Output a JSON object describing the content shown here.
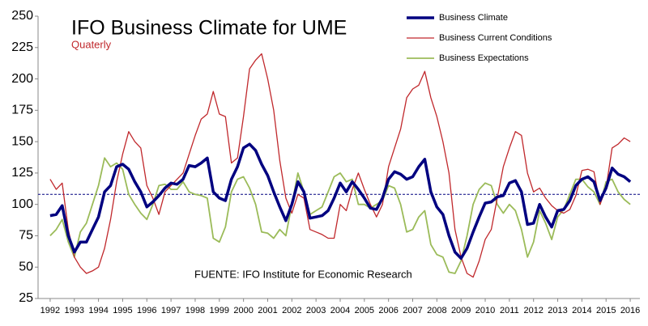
{
  "chart_data": {
    "type": "line",
    "title": "IFO Business Climate for UME",
    "subtitle": "Quaterly",
    "annotation": "FUENTE: IFO Institute for Economic Research",
    "x": [
      1992,
      1992.25,
      1992.5,
      1992.75,
      1993,
      1993.25,
      1993.5,
      1993.75,
      1994,
      1994.25,
      1994.5,
      1994.75,
      1995,
      1995.25,
      1995.5,
      1995.75,
      1996,
      1996.25,
      1996.5,
      1996.75,
      1997,
      1997.25,
      1997.5,
      1997.75,
      1998,
      1998.25,
      1998.5,
      1998.75,
      1999,
      1999.25,
      1999.5,
      1999.75,
      2000,
      2000.25,
      2000.5,
      2000.75,
      2001,
      2001.25,
      2001.5,
      2001.75,
      2002,
      2002.25,
      2002.5,
      2002.75,
      2003,
      2003.25,
      2003.5,
      2003.75,
      2004,
      2004.25,
      2004.5,
      2004.75,
      2005,
      2005.25,
      2005.5,
      2005.75,
      2006,
      2006.25,
      2006.5,
      2006.75,
      2007,
      2007.25,
      2007.5,
      2007.75,
      2008,
      2008.25,
      2008.5,
      2008.75,
      2009,
      2009.25,
      2009.5,
      2009.75,
      2010,
      2010.25,
      2010.5,
      2010.75,
      2011,
      2011.25,
      2011.5,
      2011.75,
      2012,
      2012.25,
      2012.5,
      2012.75,
      2013,
      2013.25,
      2013.5,
      2013.75,
      2014,
      2014.25,
      2014.5,
      2014.75,
      2015,
      2015.25,
      2015.5,
      2015.75,
      2016
    ],
    "series": [
      {
        "name": "Business Climate",
        "color": "#000080",
        "width": 3.5,
        "values": [
          91,
          92,
          99,
          75,
          62,
          70,
          70,
          80,
          90,
          110,
          115,
          130,
          132,
          128,
          118,
          110,
          98,
          102,
          107,
          113,
          117,
          116,
          120,
          131,
          130,
          133,
          137,
          110,
          105,
          103,
          120,
          130,
          145,
          148,
          143,
          132,
          123,
          110,
          98,
          87,
          100,
          118,
          110,
          89,
          90,
          91,
          95,
          105,
          117,
          110,
          118,
          112,
          105,
          97,
          96,
          105,
          120,
          126,
          124,
          120,
          122,
          130,
          136,
          110,
          98,
          92,
          75,
          62,
          57,
          65,
          78,
          90,
          101,
          102,
          106,
          107,
          117,
          119,
          110,
          84,
          85,
          100,
          90,
          82,
          95,
          96,
          103,
          115,
          120,
          122,
          118,
          103,
          113,
          129,
          124,
          122,
          118
        ]
      },
      {
        "name": "Business Current Conditions",
        "color": "#c0282c",
        "width": 1.3,
        "values": [
          120,
          112,
          117,
          80,
          58,
          50,
          45,
          47,
          50,
          65,
          88,
          118,
          140,
          158,
          150,
          145,
          115,
          105,
          92,
          110,
          115,
          120,
          125,
          140,
          155,
          168,
          172,
          190,
          172,
          170,
          133,
          137,
          170,
          208,
          215,
          220,
          200,
          175,
          135,
          105,
          93,
          108,
          105,
          80,
          78,
          76,
          73,
          73,
          100,
          95,
          112,
          125,
          112,
          100,
          90,
          100,
          130,
          145,
          160,
          185,
          192,
          195,
          206,
          185,
          170,
          150,
          125,
          80,
          58,
          45,
          42,
          55,
          72,
          80,
          105,
          130,
          145,
          158,
          155,
          125,
          110,
          113,
          105,
          99,
          95,
          93,
          96,
          107,
          127,
          128,
          126,
          100,
          113,
          145,
          148,
          153,
          150
        ]
      },
      {
        "name": "Business Expectations",
        "color": "#9bbb59",
        "width": 1.8,
        "values": [
          75,
          80,
          88,
          70,
          58,
          78,
          85,
          100,
          115,
          137,
          130,
          133,
          128,
          108,
          100,
          93,
          88,
          100,
          115,
          116,
          112,
          112,
          118,
          110,
          108,
          107,
          105,
          73,
          70,
          82,
          110,
          120,
          122,
          113,
          100,
          78,
          77,
          73,
          80,
          75,
          100,
          125,
          110,
          92,
          95,
          98,
          110,
          122,
          125,
          118,
          120,
          100,
          100,
          97,
          100,
          103,
          115,
          113,
          100,
          78,
          80,
          90,
          95,
          68,
          60,
          58,
          46,
          45,
          55,
          75,
          100,
          112,
          117,
          115,
          100,
          93,
          100,
          95,
          80,
          58,
          70,
          95,
          85,
          72,
          90,
          96,
          108,
          120,
          120,
          114,
          110,
          100,
          118,
          120,
          110,
          104,
          100
        ]
      }
    ],
    "reference_line": 108,
    "reference_color": "#000080",
    "xlim": [
      1991.5,
      2016.4
    ],
    "xticks": [
      1992,
      1993,
      1994,
      1995,
      1996,
      1997,
      1998,
      1999,
      2000,
      2001,
      2002,
      2003,
      2004,
      2005,
      2006,
      2007,
      2008,
      2009,
      2010,
      2011,
      2012,
      2013,
      2014,
      2015,
      2016
    ],
    "ylim": [
      25,
      250
    ],
    "yticks": [
      25,
      50,
      75,
      100,
      125,
      150,
      175,
      200,
      225,
      250
    ],
    "grid": false,
    "legend": "top-right"
  }
}
